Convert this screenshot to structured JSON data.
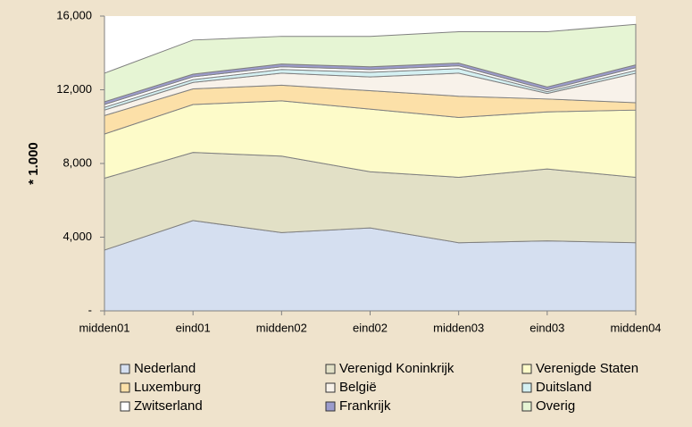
{
  "chart_data": {
    "type": "area",
    "stacked": true,
    "y_label": "* 1.000",
    "categories": [
      "midden01",
      "eind01",
      "midden02",
      "eind02",
      "midden03",
      "eind03",
      "midden04"
    ],
    "series": [
      {
        "name": "Nederland",
        "color": "#d5dff0",
        "values": [
          3300,
          4900,
          4250,
          4500,
          3700,
          3800,
          3700
        ]
      },
      {
        "name": "Verenigd Koninkrijk",
        "color": "#e2e0c6",
        "values": [
          3900,
          3700,
          4150,
          3050,
          3550,
          3900,
          3550
        ]
      },
      {
        "name": "Verenigde Staten",
        "color": "#fdfbc9",
        "values": [
          2400,
          2600,
          3000,
          3400,
          3250,
          3100,
          3650
        ]
      },
      {
        "name": "Luxemburg",
        "color": "#fce0a8",
        "values": [
          1000,
          850,
          850,
          1000,
          1150,
          700,
          400
        ]
      },
      {
        "name": "België",
        "color": "#f8f2ea",
        "values": [
          300,
          350,
          650,
          750,
          1250,
          300,
          1600
        ]
      },
      {
        "name": "Duitsland",
        "color": "#d4f0f2",
        "values": [
          150,
          150,
          200,
          250,
          250,
          100,
          150
        ]
      },
      {
        "name": "Zwitserland",
        "color": "#ffffff",
        "values": [
          150,
          150,
          150,
          150,
          150,
          100,
          150
        ]
      },
      {
        "name": "Frankrijk",
        "color": "#9c9ccc",
        "values": [
          150,
          150,
          150,
          150,
          150,
          150,
          150
        ]
      },
      {
        "name": "Overig",
        "color": "#e6f5d4",
        "values": [
          1550,
          1850,
          1500,
          1650,
          1700,
          3000,
          2200
        ]
      }
    ],
    "ylim": [
      0,
      16000
    ],
    "yticks": [
      {
        "value": 0,
        "label": "-"
      },
      {
        "value": 4000,
        "label": "4,000"
      },
      {
        "value": 8000,
        "label": "8,000"
      },
      {
        "value": 12000,
        "label": "12,000"
      },
      {
        "value": 16000,
        "label": "16,000"
      }
    ],
    "legend": "bottom"
  }
}
